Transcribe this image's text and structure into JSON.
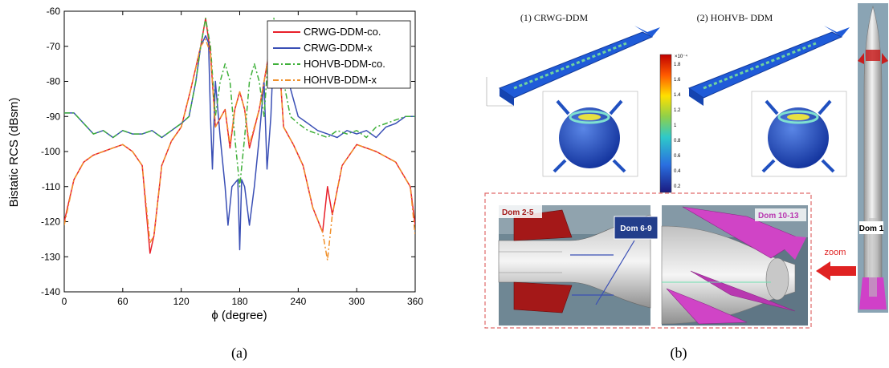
{
  "chart_data": {
    "type": "line",
    "xlabel": "ϕ (degree)",
    "ylabel": "Bistatic RCS (dBsm)",
    "xlim": [
      0,
      360
    ],
    "ylim": [
      -140,
      -60
    ],
    "xticks": [
      0,
      60,
      120,
      180,
      240,
      300,
      360
    ],
    "yticks": [
      -140,
      -130,
      -120,
      -110,
      -100,
      -90,
      -80,
      -70,
      -60
    ],
    "legend_position": "top-right",
    "series": [
      {
        "name": "CRWG-DDM-co.",
        "color": "#e8202a",
        "dash": "solid",
        "x": [
          0,
          10,
          20,
          30,
          40,
          50,
          60,
          70,
          80,
          88,
          92,
          100,
          110,
          120,
          130,
          140,
          145,
          150,
          155,
          165,
          170,
          175,
          180,
          185,
          190,
          200,
          210,
          215,
          220,
          225,
          235,
          245,
          255,
          265,
          270,
          275,
          285,
          300,
          320,
          340,
          355,
          360
        ],
        "y": [
          -120,
          -108,
          -103,
          -101,
          -100,
          -99,
          -98,
          -100,
          -104,
          -129,
          -124,
          -104,
          -97,
          -93,
          -82,
          -70,
          -62,
          -72,
          -93,
          -88,
          -99,
          -88,
          -83,
          -88,
          -99,
          -88,
          -72,
          -65,
          -72,
          -93,
          -98,
          -104,
          -116,
          -123,
          -110,
          -118,
          -104,
          -98,
          -100,
          -103,
          -110,
          -121
        ]
      },
      {
        "name": "CRWG-DDM-x",
        "color": "#3a4fb5",
        "dash": "solid",
        "x": [
          0,
          10,
          20,
          30,
          40,
          50,
          60,
          70,
          80,
          90,
          100,
          110,
          120,
          128,
          135,
          140,
          145,
          148,
          150,
          152,
          155,
          160,
          165,
          168,
          172,
          178,
          180,
          182,
          185,
          190,
          195,
          200,
          205,
          208,
          212,
          215,
          220,
          225,
          230,
          240,
          250,
          260,
          270,
          280,
          290,
          300,
          310,
          320,
          330,
          340,
          350,
          360
        ],
        "y": [
          -89,
          -89,
          -92,
          -95,
          -94,
          -96,
          -94,
          -95,
          -95,
          -94,
          -96,
          -94,
          -92,
          -90,
          -80,
          -70,
          -67,
          -69,
          -90,
          -105,
          -80,
          -96,
          -110,
          -121,
          -110,
          -108,
          -128,
          -108,
          -110,
          -121,
          -110,
          -96,
          -80,
          -105,
          -90,
          -69,
          -67,
          -70,
          -80,
          -90,
          -92,
          -94,
          -95,
          -96,
          -94,
          -95,
          -94,
          -96,
          -93,
          -92,
          -90,
          -90
        ]
      },
      {
        "name": "HOHVB-DDM-co.",
        "color": "#3fb03a",
        "dash": "dashdot",
        "x": [
          0,
          10,
          20,
          30,
          40,
          50,
          60,
          70,
          80,
          90,
          100,
          110,
          120,
          128,
          135,
          140,
          145,
          150,
          155,
          160,
          165,
          170,
          175,
          180,
          185,
          190,
          195,
          200,
          205,
          210,
          215,
          220,
          225,
          232,
          240,
          250,
          260,
          270,
          280,
          290,
          300,
          310,
          320,
          330,
          340,
          350,
          360
        ],
        "y": [
          -89,
          -89,
          -92,
          -95,
          -94,
          -96,
          -94,
          -95,
          -95,
          -94,
          -96,
          -94,
          -92,
          -90,
          -80,
          -70,
          -62,
          -70,
          -90,
          -80,
          -75,
          -80,
          -96,
          -110,
          -96,
          -80,
          -75,
          -80,
          -90,
          -70,
          -62,
          -70,
          -80,
          -90,
          -92,
          -94,
          -95,
          -96,
          -94,
          -95,
          -94,
          -96,
          -93,
          -92,
          -91,
          -90,
          -90
        ]
      },
      {
        "name": "HOHVB-DDM-x",
        "color": "#f0902a",
        "dash": "dashdot",
        "x": [
          0,
          10,
          20,
          30,
          40,
          50,
          60,
          70,
          80,
          88,
          92,
          100,
          110,
          120,
          130,
          140,
          145,
          150,
          155,
          165,
          170,
          175,
          180,
          185,
          190,
          200,
          210,
          215,
          220,
          225,
          235,
          245,
          255,
          265,
          270,
          275,
          285,
          300,
          320,
          340,
          355,
          360
        ],
        "y": [
          -121,
          -108,
          -103,
          -101,
          -100,
          -99,
          -98,
          -100,
          -104,
          -126,
          -124,
          -104,
          -97,
          -93,
          -82,
          -70,
          -68,
          -72,
          -93,
          -88,
          -98,
          -88,
          -83,
          -88,
          -98,
          -88,
          -72,
          -68,
          -72,
          -93,
          -98,
          -104,
          -116,
          -123,
          -131,
          -118,
          -104,
          -98,
          -100,
          -103,
          -110,
          -124
        ]
      }
    ]
  },
  "captions": {
    "a": "(a)",
    "b": "(b)"
  },
  "figure_b": {
    "title_1": "(1) CRWG-DDM",
    "title_2": "(2) HOHVB- DDM",
    "colorbar_top": "×10⁻⁴",
    "colorbar_ticks": [
      "1.8",
      "1.6",
      "1.4",
      "1.2",
      "1",
      "0.8",
      "0.6",
      "0.4",
      "0.2"
    ],
    "dom_2_5": "Dom 2-5",
    "dom_6_9": "Dom 6-9",
    "dom_10_13": "Dom 10-13",
    "dom_1": "Dom 1",
    "zoom": "zoom"
  }
}
